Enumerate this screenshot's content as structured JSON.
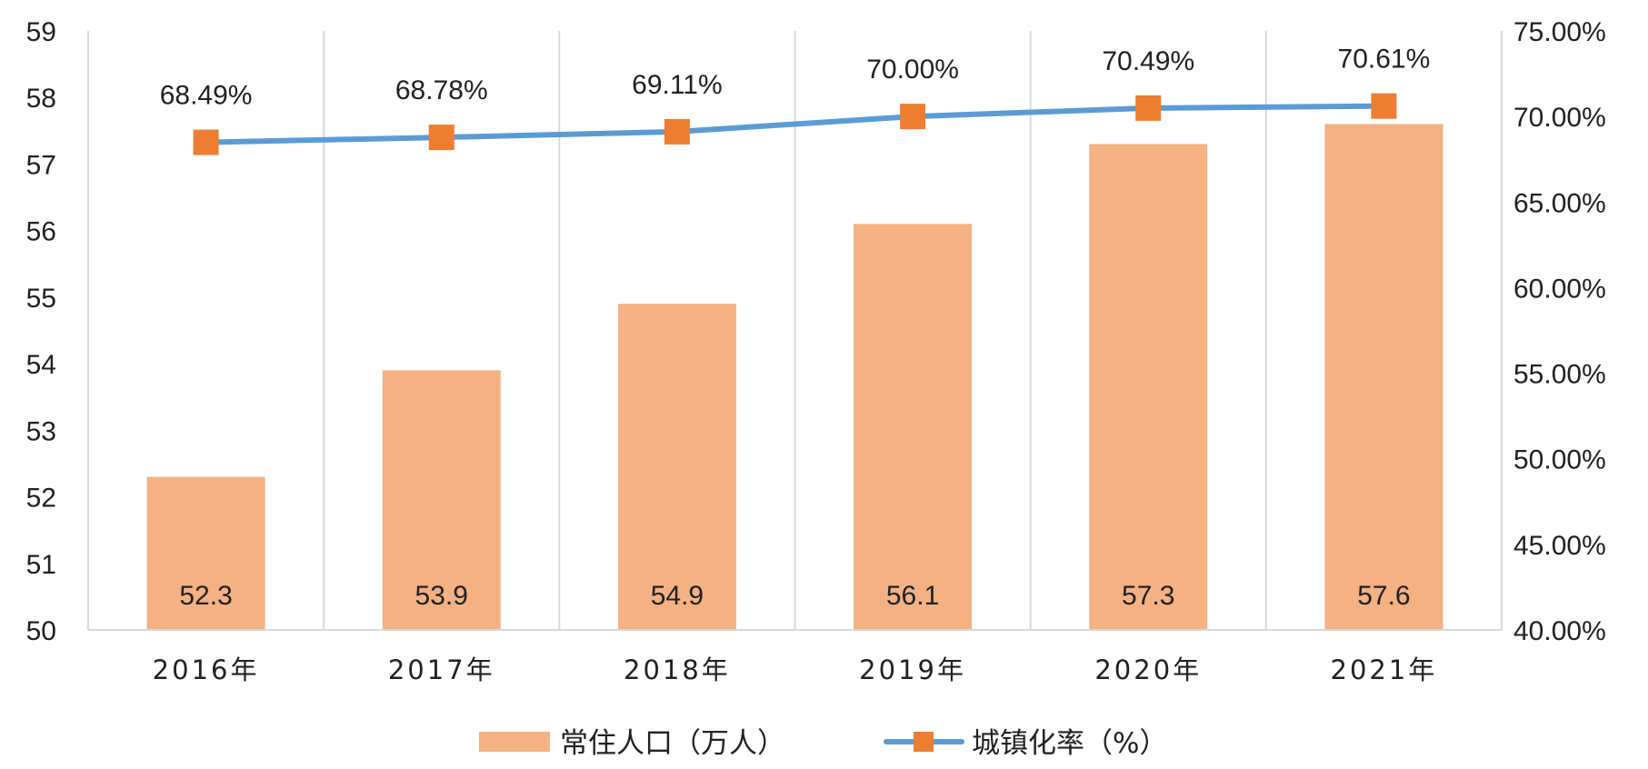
{
  "chart_data": {
    "type": "bar",
    "categories": [
      "2016年",
      "2017年",
      "2018年",
      "2019年",
      "2020年",
      "2021年"
    ],
    "series": [
      {
        "name": "常住人口（万人）",
        "type": "bar",
        "axis": "left",
        "values": [
          52.3,
          53.9,
          54.9,
          56.1,
          57.3,
          57.6
        ],
        "value_labels": [
          "52.3",
          "53.9",
          "54.9",
          "56.1",
          "57.3",
          "57.6"
        ]
      },
      {
        "name": "城镇化率（%）",
        "type": "line",
        "axis": "right",
        "values": [
          68.49,
          68.78,
          69.11,
          70.0,
          70.49,
          70.61
        ],
        "value_labels": [
          "68.49%",
          "68.78%",
          "69.11%",
          "70.00%",
          "70.49%",
          "70.61%"
        ]
      }
    ],
    "y_left": {
      "ylim": [
        50,
        59
      ],
      "ticks": [
        "50",
        "51",
        "52",
        "53",
        "54",
        "55",
        "56",
        "57",
        "58",
        "59"
      ]
    },
    "y_right": {
      "ylim": [
        40,
        75
      ],
      "ticks": [
        "40.00%",
        "45.00%",
        "50.00%",
        "55.00%",
        "60.00%",
        "65.00%",
        "70.00%",
        "75.00%"
      ]
    },
    "grid": "vertical",
    "legend_position": "bottom",
    "colors": {
      "bar": "#F4B183",
      "line": "#5B9BD5",
      "marker": "#ED7D31",
      "grid": "#D9D9D9"
    }
  }
}
